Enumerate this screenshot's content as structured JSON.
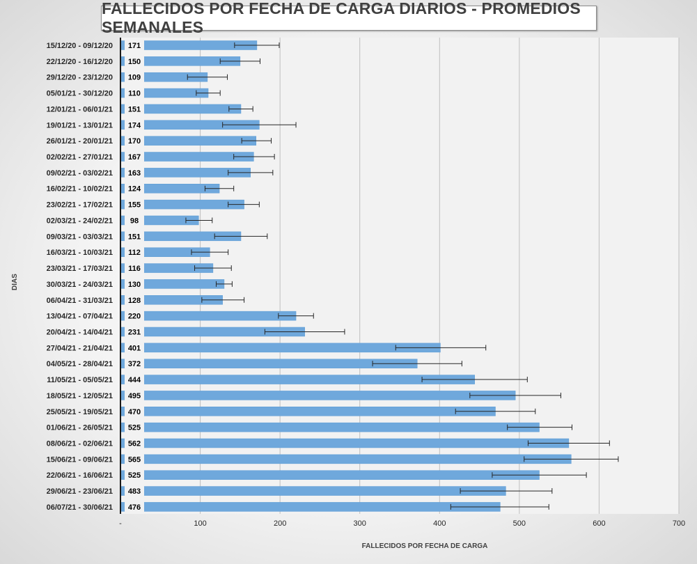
{
  "chart_data": {
    "type": "bar",
    "orientation": "horizontal",
    "title": "FALLECIDOS POR FECHA DE CARGA DIARIOS - PROMEDIOS SEMANALES",
    "xlabel": "FALLECIDOS POR FECHA DE CARGA",
    "ylabel": "DIAS",
    "xlim": [
      0,
      700
    ],
    "x_ticks": [
      "-",
      "100",
      "200",
      "300",
      "400",
      "500",
      "600",
      "700"
    ],
    "grid": true,
    "legend": "none",
    "colors": {
      "bar": "#6fa8dc",
      "bar_edge": "#5b9bd5",
      "grid": "#bfbfbf",
      "plot_background": "#f2f2f2",
      "label_box": "#f2f2f2"
    },
    "categories": [
      "15/12/20 - 09/12/20",
      "22/12/20 - 16/12/20",
      "29/12/20 - 23/12/20",
      "05/01/21 - 30/12/20",
      "12/01/21 - 06/01/21",
      "19/01/21 - 13/01/21",
      "26/01/21 - 20/01/21",
      "02/02/21 - 27/01/21",
      "09/02/21 - 03/02/21",
      "16/02/21 - 10/02/21",
      "23/02/21 - 17/02/21",
      "02/03/21 - 24/02/21",
      "09/03/21 - 03/03/21",
      "16/03/21 - 10/03/21",
      "23/03/21 - 17/03/21",
      "30/03/21 - 24/03/21",
      "06/04/21 - 31/03/21",
      "13/04/21 - 07/04/21",
      "20/04/21 - 14/04/21",
      "27/04/21 - 21/04/21",
      "04/05/21 - 28/04/21",
      "11/05/21 - 05/05/21",
      "18/05/21 - 12/05/21",
      "25/05/21 - 19/05/21",
      "01/06/21 - 26/05/21",
      "08/06/21 - 02/06/21",
      "15/06/21 - 09/06/21",
      "22/06/21 - 16/06/21",
      "29/06/21 - 23/06/21",
      "06/07/21 - 30/06/21"
    ],
    "values": [
      171,
      150,
      109,
      110,
      151,
      174,
      170,
      167,
      163,
      124,
      155,
      98,
      151,
      112,
      116,
      130,
      128,
      220,
      231,
      401,
      372,
      444,
      495,
      470,
      525,
      562,
      565,
      525,
      483,
      476
    ],
    "error_bars": [
      [
        143,
        199
      ],
      [
        125,
        175
      ],
      [
        84,
        134
      ],
      [
        95,
        125
      ],
      [
        136,
        166
      ],
      [
        128,
        220
      ],
      [
        152,
        189
      ],
      [
        142,
        193
      ],
      [
        135,
        191
      ],
      [
        106,
        142
      ],
      [
        135,
        174
      ],
      [
        82,
        115
      ],
      [
        118,
        184
      ],
      [
        89,
        135
      ],
      [
        93,
        139
      ],
      [
        120,
        140
      ],
      [
        102,
        155
      ],
      [
        198,
        242
      ],
      [
        181,
        281
      ],
      [
        345,
        458
      ],
      [
        316,
        428
      ],
      [
        378,
        510
      ],
      [
        438,
        552
      ],
      [
        420,
        520
      ],
      [
        485,
        566
      ],
      [
        511,
        613
      ],
      [
        506,
        624
      ],
      [
        466,
        584
      ],
      [
        426,
        541
      ],
      [
        414,
        537
      ]
    ]
  }
}
